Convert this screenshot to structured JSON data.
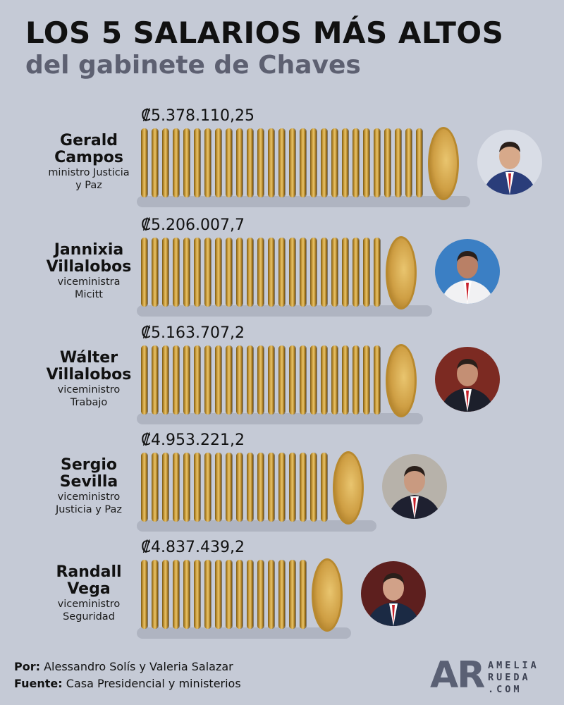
{
  "header": {
    "title": "LOS 5 SALARIOS MÁS ALTOS",
    "subtitle": "del gabinete de Chaves"
  },
  "chart_data": {
    "type": "bar",
    "title": "LOS 5 SALARIOS MÁS ALTOS",
    "subtitle": "del gabinete de Chaves",
    "categories": [
      "Gerald Campos",
      "Jannixia Villalobos",
      "Wálter Villalobos",
      "Sergio Sevilla",
      "Randall Vega"
    ],
    "values": [
      5378110.25,
      5206007.7,
      5163707.2,
      4953221.2,
      4837439.2
    ],
    "value_labels": [
      "₡5.378.110,25",
      "₡5.206.007,7",
      "₡5.163.707,2",
      "₡4.953.221,2",
      "₡4.837.439,2"
    ],
    "people": [
      {
        "name_1": "Gerald",
        "name_2": "Campos",
        "role_1": "ministro Justicia",
        "role_2": "y Paz"
      },
      {
        "name_1": "Jannixia",
        "name_2": "Villalobos",
        "role_1": "viceministra",
        "role_2": "Micitt"
      },
      {
        "name_1": "Wálter",
        "name_2": "Villalobos",
        "role_1": "viceministro",
        "role_2": "Trabajo"
      },
      {
        "name_1": "Sergio",
        "name_2": "Sevilla",
        "role_1": "viceministro",
        "role_2": "Justicia y Paz"
      },
      {
        "name_1": "Randall",
        "name_2": "Vega",
        "role_1": "viceministro",
        "role_2": "Seguridad"
      }
    ],
    "ylim": [
      4600000,
      5400000
    ]
  },
  "footer": {
    "by_label": "Por:",
    "by_value": "Alessandro Solís y Valeria Salazar",
    "source_label": "Fuente:",
    "source_value": "Casa Presidencial y ministerios"
  },
  "logo": {
    "mark": "AR",
    "line1": "AMELIA",
    "line2": "RUEDA",
    "line3": ".COM"
  },
  "colors": {
    "background": "#c5cad6",
    "coin": "#c99a3a",
    "accent": "#5a6074"
  }
}
